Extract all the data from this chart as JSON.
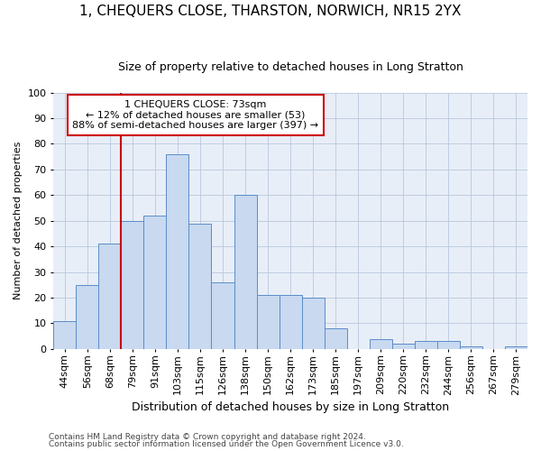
{
  "title1": "1, CHEQUERS CLOSE, THARSTON, NORWICH, NR15 2YX",
  "title2": "Size of property relative to detached houses in Long Stratton",
  "xlabel": "Distribution of detached houses by size in Long Stratton",
  "ylabel": "Number of detached properties",
  "footnote1": "Contains HM Land Registry data © Crown copyright and database right 2024.",
  "footnote2": "Contains public sector information licensed under the Open Government Licence v3.0.",
  "annotation_line1": "1 CHEQUERS CLOSE: 73sqm",
  "annotation_line2": "← 12% of detached houses are smaller (53)",
  "annotation_line3": "88% of semi-detached houses are larger (397) →",
  "bar_labels": [
    "44sqm",
    "56sqm",
    "68sqm",
    "79sqm",
    "91sqm",
    "103sqm",
    "115sqm",
    "126sqm",
    "138sqm",
    "150sqm",
    "162sqm",
    "173sqm",
    "185sqm",
    "197sqm",
    "209sqm",
    "220sqm",
    "232sqm",
    "244sqm",
    "256sqm",
    "267sqm",
    "279sqm"
  ],
  "bar_values": [
    11,
    25,
    41,
    50,
    52,
    76,
    49,
    26,
    60,
    21,
    21,
    20,
    8,
    0,
    4,
    2,
    3,
    3,
    1,
    0,
    1
  ],
  "bar_color": "#c8d9f0",
  "bar_edge_color": "#5b8cc8",
  "red_line_color": "#cc0000",
  "red_line_index": 3,
  "annotation_box_color": "#cc0000",
  "grid_color": "#b8c8dc",
  "background_color": "#e8eef8",
  "ylim": [
    0,
    100
  ],
  "yticks": [
    0,
    10,
    20,
    30,
    40,
    50,
    60,
    70,
    80,
    90,
    100
  ],
  "title1_fontsize": 11,
  "title2_fontsize": 9,
  "xlabel_fontsize": 9,
  "ylabel_fontsize": 8,
  "tick_fontsize": 8,
  "annot_fontsize": 8,
  "footnote_fontsize": 6.5
}
